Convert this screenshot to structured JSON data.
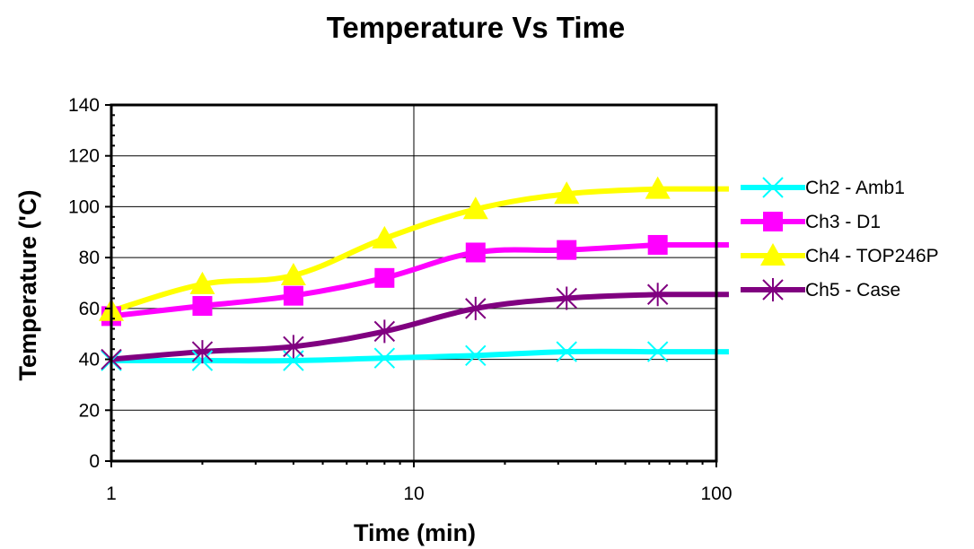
{
  "chart_data": {
    "type": "line",
    "title": "Temperature Vs Time",
    "xlabel": "Time (min)",
    "ylabel": "Temperature ('C)",
    "x_scale": "log",
    "xlim": [
      1,
      100
    ],
    "ylim": [
      0,
      140
    ],
    "x_ticks": [
      1,
      10,
      100
    ],
    "x_tick_labels": [
      "1",
      "10",
      "100"
    ],
    "y_ticks": [
      0,
      20,
      40,
      60,
      80,
      100,
      120,
      140
    ],
    "y_tick_labels": [
      "0",
      "20",
      "40",
      "60",
      "80",
      "100",
      "120",
      "140"
    ],
    "grid": "major vertical and horizontal",
    "legend_position": "right",
    "x": [
      1,
      2,
      4,
      8,
      16,
      32,
      64
    ],
    "series": [
      {
        "name": "Ch2 - Amb1",
        "color": "#00FFFF",
        "marker": "x",
        "values": [
          39.5,
          39.5,
          39.5,
          40.5,
          41.5,
          43,
          43
        ]
      },
      {
        "name": "Ch3 - D1",
        "color": "#FF00FF",
        "marker": "square",
        "values": [
          57,
          61,
          65,
          72,
          82,
          83,
          85
        ]
      },
      {
        "name": "Ch4 - TOP246P",
        "color": "#FFFF00",
        "marker": "triangle",
        "values": [
          59,
          69.5,
          73,
          87.5,
          99,
          105,
          107
        ]
      },
      {
        "name": "Ch5 - Case",
        "color": "#800080",
        "marker": "asterisk",
        "values": [
          40,
          43,
          45,
          51,
          60,
          64,
          65.5
        ]
      }
    ],
    "extend_to_x": 110
  }
}
